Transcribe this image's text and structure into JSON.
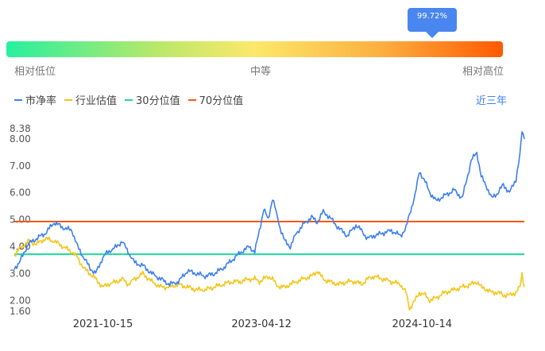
{
  "gauge": {
    "percentile_label": "99.72%",
    "percentile": 0.9972,
    "low_label": "相对低位",
    "mid_label": "中等",
    "high_label": "相对高位"
  },
  "legend": {
    "items": [
      {
        "label": "市净率",
        "color": "#3d7ff0"
      },
      {
        "label": "行业估值",
        "color": "#f5c518"
      },
      {
        "label": "30分位值",
        "color": "#1dd999"
      },
      {
        "label": "70分位值",
        "color": "#f05a14"
      }
    ]
  },
  "period_button": "近三年",
  "chart_data": {
    "type": "line",
    "ylim": [
      1.6,
      8.38
    ],
    "y_ticks": [
      "8.38",
      "8.00",
      "7.00",
      "6.00",
      "5.00",
      "4.00",
      "3.00",
      "2.00",
      "1.60"
    ],
    "x_ticks": [
      "2021-10-15",
      "2023-04-12",
      "2024-10-14"
    ],
    "x_range": [
      "2020-12-15",
      "2025-09-30"
    ],
    "percentile_30": 3.72,
    "percentile_70": 4.93,
    "series": [
      {
        "name": "市净率",
        "color": "#3d7ff0",
        "points": [
          [
            "2020-12-15",
            3.2
          ],
          [
            "2021-01-01",
            3.4
          ],
          [
            "2021-02-01",
            4.1
          ],
          [
            "2021-03-01",
            4.3
          ],
          [
            "2021-04-01",
            4.5
          ],
          [
            "2021-05-01",
            4.9
          ],
          [
            "2021-06-01",
            4.7
          ],
          [
            "2021-07-01",
            4.6
          ],
          [
            "2021-07-20",
            4.0
          ],
          [
            "2021-08-10",
            3.6
          ],
          [
            "2021-09-01",
            3.2
          ],
          [
            "2021-09-20",
            3.0
          ],
          [
            "2021-10-15",
            3.6
          ],
          [
            "2021-11-01",
            3.8
          ],
          [
            "2021-12-01",
            4.0
          ],
          [
            "2021-12-20",
            4.2
          ],
          [
            "2022-01-10",
            3.8
          ],
          [
            "2022-02-01",
            3.4
          ],
          [
            "2022-03-01",
            3.3
          ],
          [
            "2022-04-01",
            3.0
          ],
          [
            "2022-05-01",
            2.8
          ],
          [
            "2022-06-01",
            2.6
          ],
          [
            "2022-07-01",
            2.7
          ],
          [
            "2022-08-01",
            3.1
          ],
          [
            "2022-09-01",
            3.0
          ],
          [
            "2022-10-01",
            2.9
          ],
          [
            "2022-11-01",
            3.0
          ],
          [
            "2022-12-01",
            3.2
          ],
          [
            "2023-01-01",
            3.5
          ],
          [
            "2023-02-01",
            3.8
          ],
          [
            "2023-03-01",
            4.0
          ],
          [
            "2023-03-20",
            3.8
          ],
          [
            "2023-04-05",
            4.6
          ],
          [
            "2023-04-20",
            5.4
          ],
          [
            "2023-05-05",
            5.0
          ],
          [
            "2023-05-20",
            5.8
          ],
          [
            "2023-06-01",
            5.3
          ],
          [
            "2023-06-15",
            4.7
          ],
          [
            "2023-07-01",
            4.2
          ],
          [
            "2023-07-20",
            4.0
          ],
          [
            "2023-08-10",
            4.5
          ],
          [
            "2023-09-01",
            4.8
          ],
          [
            "2023-10-01",
            5.1
          ],
          [
            "2023-10-20",
            4.9
          ],
          [
            "2023-11-10",
            5.3
          ],
          [
            "2023-12-01",
            5.1
          ],
          [
            "2024-01-01",
            4.7
          ],
          [
            "2024-02-01",
            4.4
          ],
          [
            "2024-03-01",
            4.8
          ],
          [
            "2024-03-20",
            4.6
          ],
          [
            "2024-04-10",
            4.3
          ],
          [
            "2024-05-01",
            4.4
          ],
          [
            "2024-06-01",
            4.5
          ],
          [
            "2024-07-01",
            4.6
          ],
          [
            "2024-08-01",
            4.4
          ],
          [
            "2024-08-20",
            4.7
          ],
          [
            "2024-09-01",
            5.2
          ],
          [
            "2024-09-20",
            5.9
          ],
          [
            "2024-10-05",
            6.8
          ],
          [
            "2024-10-25",
            6.4
          ],
          [
            "2024-11-10",
            6.0
          ],
          [
            "2024-12-01",
            5.7
          ],
          [
            "2025-01-01",
            5.9
          ],
          [
            "2025-02-01",
            6.1
          ],
          [
            "2025-03-01",
            5.8
          ],
          [
            "2025-04-01",
            7.2
          ],
          [
            "2025-04-20",
            7.5
          ],
          [
            "2025-05-05",
            6.6
          ],
          [
            "2025-05-25",
            6.2
          ],
          [
            "2025-06-10",
            5.8
          ],
          [
            "2025-07-01",
            6.0
          ],
          [
            "2025-07-20",
            6.3
          ],
          [
            "2025-08-10",
            6.0
          ],
          [
            "2025-09-01",
            6.5
          ],
          [
            "2025-09-15",
            7.4
          ],
          [
            "2025-09-22",
            8.3
          ],
          [
            "2025-09-30",
            8.0
          ]
        ]
      },
      {
        "name": "行业估值",
        "color": "#f5c518",
        "points": [
          [
            "2020-12-15",
            3.7
          ],
          [
            "2021-01-01",
            3.9
          ],
          [
            "2021-02-01",
            4.2
          ],
          [
            "2021-03-01",
            4.1
          ],
          [
            "2021-04-01",
            4.3
          ],
          [
            "2021-05-01",
            4.2
          ],
          [
            "2021-06-01",
            4.0
          ],
          [
            "2021-07-01",
            3.8
          ],
          [
            "2021-07-20",
            3.6
          ],
          [
            "2021-08-10",
            3.2
          ],
          [
            "2021-09-01",
            3.0
          ],
          [
            "2021-09-20",
            2.8
          ],
          [
            "2021-10-15",
            2.5
          ],
          [
            "2021-11-01",
            2.6
          ],
          [
            "2021-12-01",
            2.7
          ],
          [
            "2021-12-20",
            2.8
          ],
          [
            "2022-01-10",
            2.6
          ],
          [
            "2022-02-01",
            2.8
          ],
          [
            "2022-03-01",
            3.0
          ],
          [
            "2022-04-01",
            2.7
          ],
          [
            "2022-05-01",
            2.5
          ],
          [
            "2022-06-01",
            2.5
          ],
          [
            "2022-07-01",
            2.6
          ],
          [
            "2022-08-01",
            2.5
          ],
          [
            "2022-09-01",
            2.4
          ],
          [
            "2022-10-01",
            2.4
          ],
          [
            "2022-11-01",
            2.5
          ],
          [
            "2022-12-01",
            2.6
          ],
          [
            "2023-01-01",
            2.7
          ],
          [
            "2023-02-01",
            2.7
          ],
          [
            "2023-03-01",
            2.8
          ],
          [
            "2023-03-20",
            2.8
          ],
          [
            "2023-04-05",
            2.7
          ],
          [
            "2023-04-20",
            2.8
          ],
          [
            "2023-05-05",
            2.9
          ],
          [
            "2023-05-20",
            2.8
          ],
          [
            "2023-06-01",
            2.6
          ],
          [
            "2023-06-15",
            2.5
          ],
          [
            "2023-07-01",
            2.5
          ],
          [
            "2023-07-20",
            2.6
          ],
          [
            "2023-08-10",
            2.7
          ],
          [
            "2023-09-01",
            2.8
          ],
          [
            "2023-10-01",
            2.9
          ],
          [
            "2023-10-20",
            3.1
          ],
          [
            "2023-11-10",
            2.8
          ],
          [
            "2023-12-01",
            2.7
          ],
          [
            "2024-01-01",
            2.6
          ],
          [
            "2024-02-01",
            2.7
          ],
          [
            "2024-03-01",
            2.7
          ],
          [
            "2024-03-20",
            2.6
          ],
          [
            "2024-04-10",
            2.8
          ],
          [
            "2024-05-01",
            2.9
          ],
          [
            "2024-06-01",
            2.8
          ],
          [
            "2024-07-01",
            2.7
          ],
          [
            "2024-08-01",
            2.6
          ],
          [
            "2024-08-20",
            2.3
          ],
          [
            "2024-09-01",
            1.7
          ],
          [
            "2024-09-20",
            2.0
          ],
          [
            "2024-10-05",
            2.3
          ],
          [
            "2024-10-25",
            2.2
          ],
          [
            "2024-11-10",
            2.0
          ],
          [
            "2024-12-01",
            2.1
          ],
          [
            "2025-01-01",
            2.3
          ],
          [
            "2025-02-01",
            2.4
          ],
          [
            "2025-03-01",
            2.5
          ],
          [
            "2025-04-01",
            2.6
          ],
          [
            "2025-04-20",
            2.7
          ],
          [
            "2025-05-05",
            2.5
          ],
          [
            "2025-05-25",
            2.4
          ],
          [
            "2025-06-10",
            2.3
          ],
          [
            "2025-07-01",
            2.3
          ],
          [
            "2025-07-20",
            2.2
          ],
          [
            "2025-08-10",
            2.2
          ],
          [
            "2025-09-01",
            2.3
          ],
          [
            "2025-09-15",
            2.5
          ],
          [
            "2025-09-22",
            3.0
          ],
          [
            "2025-09-30",
            2.5
          ]
        ]
      }
    ]
  }
}
